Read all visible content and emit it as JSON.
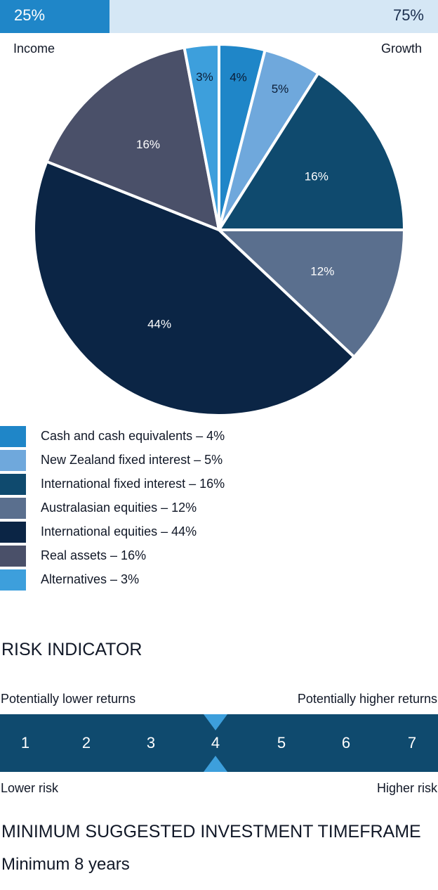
{
  "split": {
    "income_label": "Income",
    "growth_label": "Growth",
    "income_pct_label": "25%",
    "growth_pct_label": "75%",
    "income_fraction": 0.25,
    "fill_color": "#1f86c8",
    "track_color": "#d5e7f5"
  },
  "chart_data": {
    "type": "pie",
    "title": "",
    "slices": [
      {
        "label": "Cash and cash equivalents",
        "value": 4,
        "value_label": "4%",
        "color": "#1f86c8",
        "label_color": "#0b1d36"
      },
      {
        "label": "New Zealand fixed interest",
        "value": 5,
        "value_label": "5%",
        "color": "#6fa8dc",
        "label_color": "#0b1d36"
      },
      {
        "label": "International fixed interest",
        "value": 16,
        "value_label": "16%",
        "color": "#0f4a6e",
        "label_color": "#ffffff"
      },
      {
        "label": "Australasian equities",
        "value": 12,
        "value_label": "12%",
        "color": "#5a6f8e",
        "label_color": "#ffffff"
      },
      {
        "label": "International equities",
        "value": 44,
        "value_label": "44%",
        "color": "#0b2545",
        "label_color": "#ffffff"
      },
      {
        "label": "Real assets",
        "value": 16,
        "value_label": "16%",
        "color": "#4a5069",
        "label_color": "#ffffff"
      },
      {
        "label": "Alternatives",
        "value": 3,
        "value_label": "3%",
        "color": "#3d9fdc",
        "label_color": "#0b1d36"
      }
    ]
  },
  "legend": [
    {
      "text": "Cash and cash equivalents – 4%",
      "color": "#1f86c8"
    },
    {
      "text": "New Zealand fixed interest – 5%",
      "color": "#6fa8dc"
    },
    {
      "text": "International fixed interest – 16%",
      "color": "#0f4a6e"
    },
    {
      "text": "Australasian equities – 12%",
      "color": "#5a6f8e"
    },
    {
      "text": "International equities – 44%",
      "color": "#0b2545"
    },
    {
      "text": "Real assets – 16%",
      "color": "#4a5069"
    },
    {
      "text": "Alternatives – 3%",
      "color": "#3d9fdc"
    }
  ],
  "risk": {
    "title": "RISK INDICATOR",
    "lower_returns_label": "Potentially lower returns",
    "higher_returns_label": "Potentially higher returns",
    "lower_risk_label": "Lower risk",
    "higher_risk_label": "Higher risk",
    "levels": [
      "1",
      "2",
      "3",
      "4",
      "5",
      "6",
      "7"
    ],
    "selected_level": 4,
    "bar_color": "#0f4a6e",
    "marker_color": "#3d9fdc"
  },
  "timeframe": {
    "title": "MINIMUM SUGGESTED INVESTMENT TIMEFRAME",
    "value": "Minimum 8 years"
  }
}
